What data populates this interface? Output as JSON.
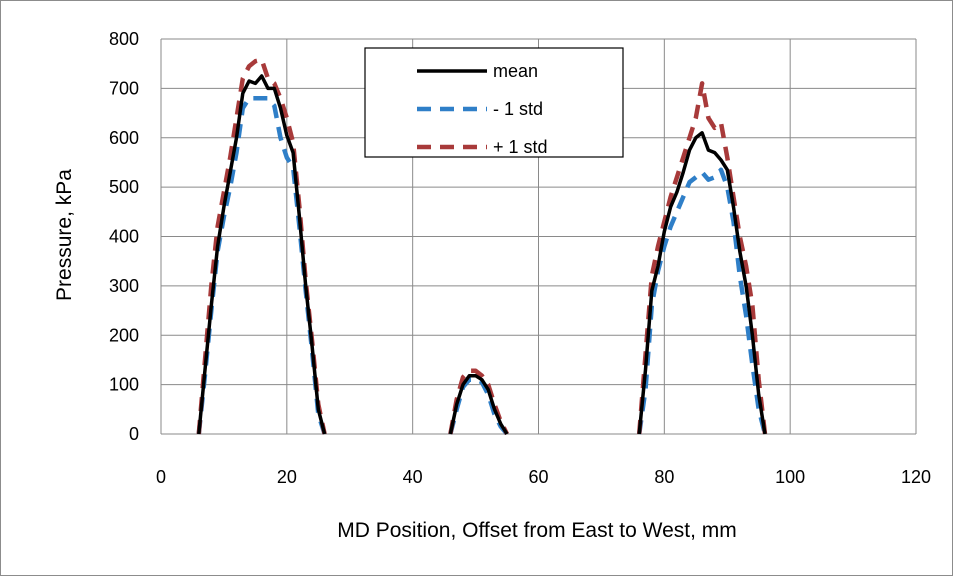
{
  "chart_data": {
    "type": "line",
    "title": "",
    "xlabel": "MD Position, Offset from East to West, mm",
    "ylabel": "Pressure, kPa",
    "xlim": [
      0,
      120
    ],
    "ylim": [
      0,
      800
    ],
    "xticks": [
      0,
      20,
      40,
      60,
      80,
      100,
      120
    ],
    "yticks": [
      0,
      100,
      200,
      300,
      400,
      500,
      600,
      700,
      800
    ],
    "grid": true,
    "legend": "top-center",
    "series": [
      {
        "name": "mean",
        "color": "#000000",
        "dash": "solid",
        "segments": [
          [
            [
              6,
              0
            ],
            [
              7,
              130
            ],
            [
              8,
              260
            ],
            [
              9,
              380
            ],
            [
              10,
              460
            ],
            [
              11,
              530
            ],
            [
              12,
              600
            ],
            [
              13,
              690
            ],
            [
              14,
              715
            ],
            [
              15,
              710
            ],
            [
              16,
              725
            ],
            [
              17,
              700
            ],
            [
              18,
              700
            ],
            [
              19,
              660
            ],
            [
              20,
              605
            ],
            [
              21,
              570
            ],
            [
              22,
              440
            ],
            [
              23,
              300
            ],
            [
              24,
              180
            ],
            [
              25,
              50
            ],
            [
              26,
              0
            ]
          ],
          [
            [
              46,
              0
            ],
            [
              47,
              60
            ],
            [
              48,
              100
            ],
            [
              49,
              118
            ],
            [
              50,
              118
            ],
            [
              51,
              110
            ],
            [
              52,
              90
            ],
            [
              53,
              50
            ],
            [
              54,
              20
            ],
            [
              55,
              0
            ]
          ],
          [
            [
              76,
              0
            ],
            [
              77,
              130
            ],
            [
              78,
              290
            ],
            [
              79,
              340
            ],
            [
              80,
              410
            ],
            [
              81,
              460
            ],
            [
              82,
              490
            ],
            [
              83,
              530
            ],
            [
              84,
              575
            ],
            [
              85,
              600
            ],
            [
              86,
              610
            ],
            [
              87,
              575
            ],
            [
              88,
              570
            ],
            [
              89,
              555
            ],
            [
              90,
              535
            ],
            [
              91,
              460
            ],
            [
              92,
              370
            ],
            [
              93,
              300
            ],
            [
              94,
              200
            ],
            [
              95,
              80
            ],
            [
              96,
              0
            ]
          ]
        ]
      },
      {
        "name": "- 1 std",
        "color": "#2f7fc8",
        "dash": "dash",
        "segments": [
          [
            [
              6,
              0
            ],
            [
              7,
              120
            ],
            [
              8,
              250
            ],
            [
              9,
              370
            ],
            [
              10,
              440
            ],
            [
              11,
              500
            ],
            [
              12,
              570
            ],
            [
              13,
              660
            ],
            [
              14,
              680
            ],
            [
              15,
              680
            ],
            [
              16,
              680
            ],
            [
              17,
              680
            ],
            [
              18,
              665
            ],
            [
              19,
              600
            ],
            [
              20,
              560
            ],
            [
              21,
              540
            ],
            [
              22,
              420
            ],
            [
              23,
              290
            ],
            [
              24,
              170
            ],
            [
              25,
              40
            ],
            [
              26,
              0
            ]
          ],
          [
            [
              46,
              0
            ],
            [
              47,
              50
            ],
            [
              48,
              95
            ],
            [
              49,
              110
            ],
            [
              50,
              110
            ],
            [
              51,
              105
            ],
            [
              52,
              80
            ],
            [
              53,
              40
            ],
            [
              54,
              15
            ],
            [
              55,
              0
            ]
          ],
          [
            [
              76,
              0
            ],
            [
              77,
              90
            ],
            [
              78,
              260
            ],
            [
              79,
              330
            ],
            [
              80,
              380
            ],
            [
              81,
              420
            ],
            [
              82,
              450
            ],
            [
              83,
              480
            ],
            [
              84,
              510
            ],
            [
              85,
              520
            ],
            [
              86,
              530
            ],
            [
              87,
              515
            ],
            [
              88,
              520
            ],
            [
              89,
              535
            ],
            [
              90,
              500
            ],
            [
              91,
              430
            ],
            [
              92,
              320
            ],
            [
              93,
              240
            ],
            [
              94,
              140
            ],
            [
              95,
              50
            ],
            [
              96,
              0
            ]
          ]
        ]
      },
      {
        "name": "+ 1 std",
        "color": "#a83a3a",
        "dash": "dash",
        "segments": [
          [
            [
              6,
              0
            ],
            [
              7,
              150
            ],
            [
              8,
              300
            ],
            [
              9,
              420
            ],
            [
              10,
              490
            ],
            [
              11,
              560
            ],
            [
              12,
              640
            ],
            [
              13,
              720
            ],
            [
              14,
              745
            ],
            [
              15,
              755
            ],
            [
              16,
              758
            ],
            [
              17,
              720
            ],
            [
              18,
              710
            ],
            [
              19,
              680
            ],
            [
              20,
              640
            ],
            [
              21,
              590
            ],
            [
              22,
              460
            ],
            [
              23,
              310
            ],
            [
              24,
              190
            ],
            [
              25,
              60
            ],
            [
              26,
              0
            ]
          ],
          [
            [
              46,
              0
            ],
            [
              47,
              70
            ],
            [
              48,
              115
            ],
            [
              49,
              128
            ],
            [
              50,
              128
            ],
            [
              51,
              118
            ],
            [
              52,
              100
            ],
            [
              53,
              60
            ],
            [
              54,
              25
            ],
            [
              55,
              0
            ]
          ],
          [
            [
              76,
              0
            ],
            [
              77,
              160
            ],
            [
              78,
              320
            ],
            [
              79,
              380
            ],
            [
              80,
              430
            ],
            [
              81,
              480
            ],
            [
              82,
              520
            ],
            [
              83,
              560
            ],
            [
              84,
              600
            ],
            [
              85,
              640
            ],
            [
              86,
              710
            ],
            [
              87,
              640
            ],
            [
              88,
              620
            ],
            [
              89,
              630
            ],
            [
              90,
              560
            ],
            [
              91,
              480
            ],
            [
              92,
              400
            ],
            [
              93,
              340
            ],
            [
              94,
              260
            ],
            [
              95,
              110
            ],
            [
              96,
              0
            ]
          ]
        ]
      }
    ]
  }
}
